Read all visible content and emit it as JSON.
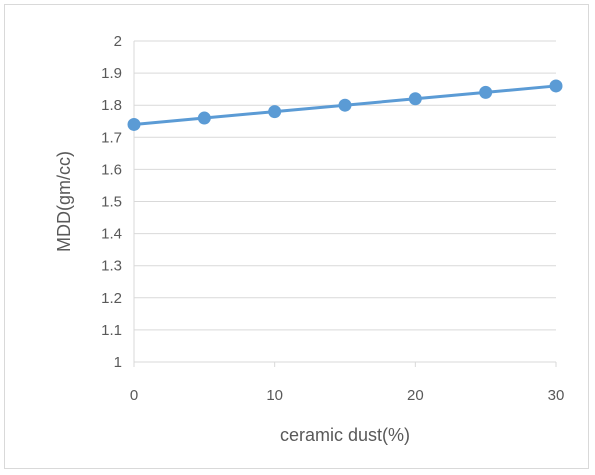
{
  "chart_data": {
    "type": "line",
    "title": "",
    "xlabel": "ceramic dust(%)",
    "ylabel": "MDD(gm/cc)",
    "xlim": [
      0,
      30
    ],
    "ylim": [
      1,
      2
    ],
    "x_ticks": [
      0,
      10,
      20,
      30
    ],
    "y_ticks": [
      1,
      1.1,
      1.2,
      1.3,
      1.4,
      1.5,
      1.6,
      1.7,
      1.8,
      1.9,
      2
    ],
    "grid": "horizontal",
    "legend": "none",
    "series": [
      {
        "color": "#5b9bd5",
        "points": [
          {
            "x": 0,
            "y": 1.74
          },
          {
            "x": 5,
            "y": 1.76
          },
          {
            "x": 10,
            "y": 1.78
          },
          {
            "x": 15,
            "y": 1.8
          },
          {
            "x": 20,
            "y": 1.82
          },
          {
            "x": 25,
            "y": 1.84
          },
          {
            "x": 30,
            "y": 1.86
          }
        ]
      }
    ]
  }
}
